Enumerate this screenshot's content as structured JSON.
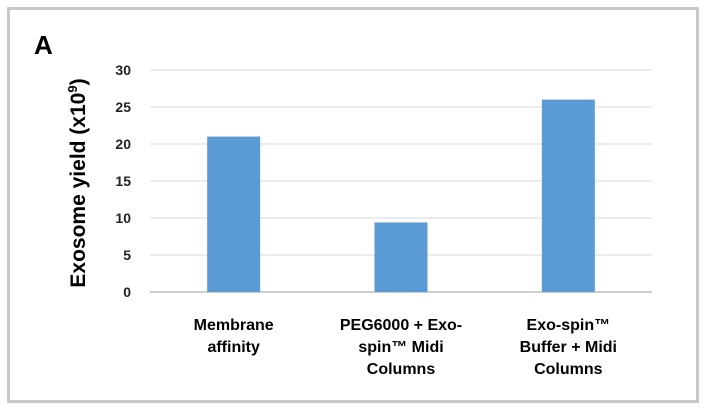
{
  "panel_letter": "A",
  "chart_data": {
    "type": "bar",
    "categories": [
      [
        "Membrane",
        "affinity"
      ],
      [
        "PEG6000 + Exo-",
        "spin™ Midi",
        "Columns"
      ],
      [
        "Exo-spin™",
        "Buffer +  Midi",
        "Columns"
      ]
    ],
    "values": [
      21,
      9.4,
      26
    ],
    "ylabel_main": "Exosome yield (x10",
    "ylabel_sup": "9",
    "ylabel_close": ")",
    "ylim": [
      0,
      30
    ],
    "yticks": [
      0,
      5,
      10,
      15,
      20,
      25,
      30
    ],
    "grid": true,
    "colors": {
      "bar": "#5b9bd5",
      "grid": "#d9d9d9",
      "axis": "#bfbfbf"
    }
  }
}
